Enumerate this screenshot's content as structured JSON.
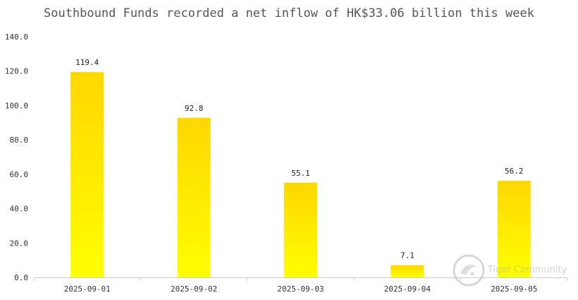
{
  "chart_data": {
    "type": "bar",
    "title": "Southbound Funds recorded a net inflow of HK$33.06 billion this week",
    "xlabel": "",
    "ylabel": "",
    "categories": [
      "2025-09-01",
      "2025-09-02",
      "2025-09-03",
      "2025-09-04",
      "2025-09-05"
    ],
    "values": [
      119.4,
      92.8,
      55.1,
      7.1,
      56.2
    ],
    "value_labels": [
      "119.4",
      "92.8",
      "55.1",
      "7.1",
      "56.2"
    ],
    "ylim": [
      0,
      140
    ],
    "yticks": [
      "0.0",
      "20.0",
      "40.0",
      "60.0",
      "80.0",
      "100.0",
      "120.0",
      "140.0"
    ],
    "grid": false,
    "legend": "none",
    "colors": {
      "bar_top": "#FFD700",
      "bar_bottom": "#FFFF00"
    }
  },
  "watermark": {
    "text": "Tiger Community",
    "icon": "tiger-logo-icon"
  }
}
